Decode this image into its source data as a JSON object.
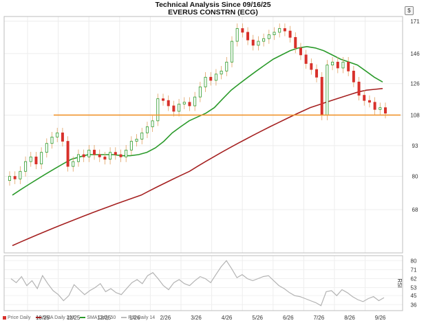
{
  "chart_data": {
    "type": "line",
    "title": "Technical Analysis Since 09/16/25",
    "subtitle": "EVERUS CONSTRN (ECG)",
    "currency_icon": "$",
    "x_ticks": [
      "10/25",
      "11/25",
      "12/25",
      "1/26",
      "2/26",
      "3/26",
      "4/26",
      "5/26",
      "6/26",
      "7/26",
      "8/26",
      "9/26"
    ],
    "price_axis": {
      "ticks": [
        68,
        80,
        93,
        108,
        126,
        146,
        171
      ],
      "ylim": [
        55,
        175
      ],
      "scale": "log"
    },
    "rsi_axis": {
      "ticks": [
        36,
        45,
        53,
        62,
        71,
        80
      ],
      "ylim": [
        30,
        85
      ],
      "label": "RSI"
    },
    "support_line": {
      "value": 108,
      "color": "#f0932b"
    },
    "series": [
      {
        "name": "Price Daily",
        "color": "#d8312b",
        "kind": "candlestick",
        "values": [
          80,
          79,
          82,
          86,
          88,
          85,
          90,
          94,
          97,
          99,
          95,
          84,
          86,
          89,
          88,
          91,
          89,
          88,
          87,
          90,
          89,
          88,
          91,
          95,
          96,
          99,
          102,
          105,
          117,
          116,
          113,
          110,
          114,
          115,
          113,
          118,
          124,
          130,
          128,
          132,
          134,
          140,
          155,
          165,
          162,
          156,
          152,
          155,
          157,
          160,
          162,
          165,
          163,
          158,
          150,
          145,
          139,
          135,
          130,
          108,
          138,
          140,
          136,
          140,
          134,
          127,
          119,
          116,
          115,
          111,
          112,
          109
        ]
      },
      {
        "name": "SMA Daily 200",
        "color": "#a52020",
        "kind": "line",
        "values": [
          57,
          58,
          59,
          60,
          61,
          62,
          63,
          64,
          65,
          66,
          67,
          68,
          69,
          70,
          71,
          72,
          73,
          74.5,
          76,
          77.5,
          79,
          80.5,
          82,
          84,
          86,
          88,
          90,
          92,
          94,
          96,
          98,
          100,
          102,
          104,
          106,
          108,
          110,
          112,
          113.5,
          115,
          116.5,
          118,
          119.5,
          121,
          122,
          122.5,
          123
        ]
      },
      {
        "name": "SMA Daily 50",
        "color": "#2a9a2a",
        "kind": "line",
        "values": [
          73,
          75,
          77,
          79,
          81,
          83,
          85,
          87,
          88,
          89,
          89,
          89,
          89,
          88.5,
          88.5,
          89,
          90,
          92,
          95,
          99,
          102,
          105,
          107,
          109,
          112,
          117,
          122,
          126,
          130,
          134,
          138,
          142,
          145,
          148,
          150,
          151,
          150,
          148,
          145,
          142,
          140,
          138,
          134,
          130,
          127
        ]
      },
      {
        "name": "RSI Daily 14",
        "color": "#b3b3b3",
        "kind": "line",
        "values": [
          62,
          58,
          64,
          55,
          60,
          52,
          65,
          57,
          50,
          46,
          40,
          45,
          56,
          51,
          46,
          50,
          53,
          57,
          49,
          52,
          48,
          46,
          52,
          58,
          61,
          57,
          65,
          68,
          62,
          55,
          51,
          58,
          61,
          57,
          55,
          60,
          64,
          62,
          58,
          66,
          74,
          80,
          72,
          63,
          66,
          62,
          60,
          62,
          64,
          65,
          60,
          55,
          52,
          48,
          45,
          44,
          42,
          40,
          38,
          35,
          49,
          50,
          45,
          51,
          48,
          44,
          41,
          39,
          42,
          44,
          40,
          43
        ]
      }
    ]
  },
  "legend": [
    {
      "label": "Price Daily",
      "color": "#d8312b",
      "swatch": "square"
    },
    {
      "label": "SMA Daily 200",
      "color": "#a52020",
      "swatch": "line"
    },
    {
      "label": "SMA Daily 50",
      "color": "#2a9a2a",
      "swatch": "line"
    },
    {
      "label": "RSI Daily 14",
      "color": "#bbbbbb",
      "swatch": "line"
    }
  ]
}
